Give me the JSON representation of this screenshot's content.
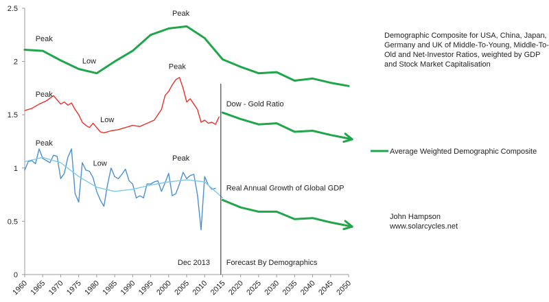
{
  "chart_data": {
    "type": "line",
    "x_range": [
      1960,
      2050
    ],
    "ylim": [
      0,
      2.5
    ],
    "yticks": [
      0,
      0.5,
      1,
      1.5,
      2,
      2.5
    ],
    "xticks": [
      1960,
      1965,
      1970,
      1975,
      1980,
      1985,
      1990,
      1995,
      2000,
      2005,
      2010,
      2015,
      2020,
      2025,
      2030,
      2035,
      2040,
      2045,
      2050
    ],
    "grid": false,
    "series": [
      {
        "key": "demographic",
        "name": "Average Weighted Demographic Composite",
        "color": "#1fa64a",
        "points": [
          [
            1960,
            2.11
          ],
          [
            1965,
            2.1
          ],
          [
            1970,
            2.01
          ],
          [
            1975,
            1.93
          ],
          [
            1980,
            1.89
          ],
          [
            1985,
            2.0
          ],
          [
            1990,
            2.1
          ],
          [
            1995,
            2.25
          ],
          [
            2000,
            2.31
          ],
          [
            2005,
            2.33
          ],
          [
            2010,
            2.22
          ],
          [
            2015,
            2.02
          ],
          [
            2020,
            1.95
          ],
          [
            2025,
            1.89
          ],
          [
            2030,
            1.9
          ],
          [
            2035,
            1.82
          ],
          [
            2040,
            1.84
          ],
          [
            2045,
            1.8
          ],
          [
            2050,
            1.77
          ]
        ]
      },
      {
        "key": "dow_gold",
        "name": "Dow - Gold Ratio",
        "color": "#e8302a",
        "points": [
          [
            1960,
            1.54
          ],
          [
            1962,
            1.56
          ],
          [
            1964,
            1.6
          ],
          [
            1966,
            1.63
          ],
          [
            1968,
            1.68
          ],
          [
            1969,
            1.64
          ],
          [
            1970,
            1.6
          ],
          [
            1971,
            1.62
          ],
          [
            1972,
            1.59
          ],
          [
            1973,
            1.61
          ],
          [
            1974,
            1.55
          ],
          [
            1975,
            1.5
          ],
          [
            1976,
            1.43
          ],
          [
            1977,
            1.4
          ],
          [
            1978,
            1.38
          ],
          [
            1979,
            1.42
          ],
          [
            1980,
            1.38
          ],
          [
            1981,
            1.34
          ],
          [
            1982,
            1.33
          ],
          [
            1984,
            1.35
          ],
          [
            1986,
            1.36
          ],
          [
            1988,
            1.38
          ],
          [
            1990,
            1.4
          ],
          [
            1992,
            1.39
          ],
          [
            1994,
            1.42
          ],
          [
            1996,
            1.45
          ],
          [
            1998,
            1.55
          ],
          [
            1999,
            1.68
          ],
          [
            2000,
            1.72
          ],
          [
            2001,
            1.78
          ],
          [
            2002,
            1.83
          ],
          [
            2003,
            1.85
          ],
          [
            2004,
            1.75
          ],
          [
            2005,
            1.62
          ],
          [
            2006,
            1.65
          ],
          [
            2007,
            1.6
          ],
          [
            2008,
            1.55
          ],
          [
            2009,
            1.43
          ],
          [
            2010,
            1.45
          ],
          [
            2011,
            1.42
          ],
          [
            2012,
            1.43
          ],
          [
            2013,
            1.41
          ],
          [
            2014,
            1.48
          ]
        ]
      },
      {
        "key": "gdp",
        "name": "Real Annual Growth of Global GDP",
        "color": "#4a8fd0",
        "points": [
          [
            1960,
            0.98
          ],
          [
            1961,
            1.06
          ],
          [
            1962,
            1.07
          ],
          [
            1963,
            1.04
          ],
          [
            1964,
            1.18
          ],
          [
            1965,
            1.09
          ],
          [
            1966,
            1.07
          ],
          [
            1967,
            1.05
          ],
          [
            1968,
            1.12
          ],
          [
            1969,
            1.11
          ],
          [
            1970,
            0.9
          ],
          [
            1971,
            0.95
          ],
          [
            1972,
            1.1
          ],
          [
            1973,
            1.18
          ],
          [
            1974,
            0.76
          ],
          [
            1975,
            0.68
          ],
          [
            1976,
            1.05
          ],
          [
            1977,
            0.98
          ],
          [
            1978,
            0.97
          ],
          [
            1979,
            0.91
          ],
          [
            1980,
            0.78
          ],
          [
            1981,
            0.7
          ],
          [
            1982,
            0.64
          ],
          [
            1983,
            0.84
          ],
          [
            1984,
            1.0
          ],
          [
            1985,
            0.92
          ],
          [
            1986,
            0.9
          ],
          [
            1987,
            0.94
          ],
          [
            1988,
            0.99
          ],
          [
            1989,
            0.88
          ],
          [
            1990,
            0.85
          ],
          [
            1991,
            0.72
          ],
          [
            1992,
            0.74
          ],
          [
            1993,
            0.72
          ],
          [
            1994,
            0.85
          ],
          [
            1995,
            0.85
          ],
          [
            1996,
            0.87
          ],
          [
            1997,
            0.88
          ],
          [
            1998,
            0.78
          ],
          [
            1999,
            0.86
          ],
          [
            2000,
            0.95
          ],
          [
            2001,
            0.74
          ],
          [
            2002,
            0.76
          ],
          [
            2003,
            0.85
          ],
          [
            2004,
            0.96
          ],
          [
            2005,
            0.9
          ],
          [
            2006,
            0.93
          ],
          [
            2007,
            0.94
          ],
          [
            2008,
            0.75
          ],
          [
            2009,
            0.42
          ],
          [
            2010,
            0.92
          ],
          [
            2011,
            0.84
          ],
          [
            2012,
            0.8
          ],
          [
            2013,
            0.81
          ]
        ]
      },
      {
        "key": "gdp_trend",
        "name": "",
        "color": "#7fc8ea",
        "points": [
          [
            1960,
            1.06
          ],
          [
            1965,
            1.1
          ],
          [
            1970,
            1.05
          ],
          [
            1975,
            0.92
          ],
          [
            1980,
            0.82
          ],
          [
            1985,
            0.78
          ],
          [
            1990,
            0.8
          ],
          [
            1995,
            0.84
          ],
          [
            2000,
            0.87
          ],
          [
            2005,
            0.89
          ],
          [
            2010,
            0.87
          ],
          [
            2015,
            0.72
          ]
        ]
      },
      {
        "key": "forecast_dow_gold",
        "name": "",
        "color": "#1fa64a",
        "arrow": true,
        "points": [
          [
            2015,
            1.52
          ],
          [
            2020,
            1.46
          ],
          [
            2025,
            1.41
          ],
          [
            2030,
            1.42
          ],
          [
            2035,
            1.34
          ],
          [
            2040,
            1.35
          ],
          [
            2045,
            1.31
          ],
          [
            2051,
            1.27
          ]
        ]
      },
      {
        "key": "forecast_gdp",
        "name": "",
        "color": "#1fa64a",
        "arrow": true,
        "points": [
          [
            2015,
            0.7
          ],
          [
            2020,
            0.63
          ],
          [
            2025,
            0.59
          ],
          [
            2030,
            0.59
          ],
          [
            2035,
            0.52
          ],
          [
            2040,
            0.53
          ],
          [
            2045,
            0.49
          ],
          [
            2051,
            0.45
          ]
        ]
      }
    ],
    "annotations": [
      {
        "text": "Peak",
        "x": 1963,
        "y": 2.19
      },
      {
        "text": "Low",
        "x": 1976,
        "y": 1.98
      },
      {
        "text": "Peak",
        "x": 2001,
        "y": 2.43
      },
      {
        "text": "Peak",
        "x": 1963,
        "y": 1.67
      },
      {
        "text": "Low",
        "x": 1981,
        "y": 1.43
      },
      {
        "text": "Peak",
        "x": 2000,
        "y": 1.93
      },
      {
        "text": "Peak",
        "x": 1963,
        "y": 1.21
      },
      {
        "text": "Low",
        "x": 1979,
        "y": 1.02
      },
      {
        "text": "Peak",
        "x": 2001,
        "y": 1.07
      },
      {
        "text": "Dow - Gold Ratio",
        "x": 2016,
        "y": 1.58
      },
      {
        "text": "Real Annual Growth of Global GDP",
        "x": 2016,
        "y": 0.79
      },
      {
        "text": "Dec 2013",
        "x": 2002.5,
        "y": 0.09
      },
      {
        "text": "Forecast By Demographics",
        "x": 2016,
        "y": 0.09
      }
    ],
    "forecast_line_x": 2014.5,
    "legend": {
      "position": "right",
      "label": "Average Weighted Demographic Composite",
      "color": "#1fa64a"
    },
    "description_block": "Demographic Composite for USA, China, Japan, Germany and UK of Middle-To-Young, Middle-To-Old and Net-Investor Ratios, weighted by GDP and Stock Market Capitalisation",
    "credit": {
      "author": "John Hampson",
      "url": "www.solarcycles.net"
    }
  }
}
